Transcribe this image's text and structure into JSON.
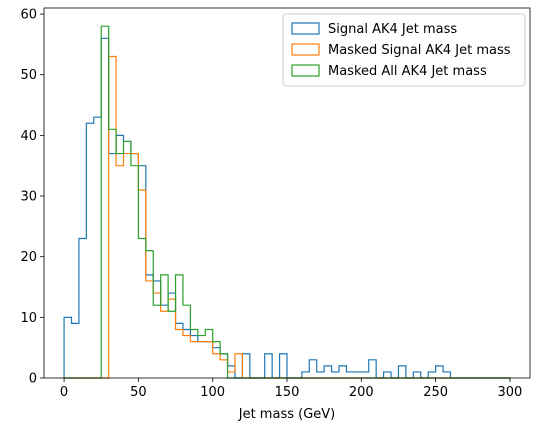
{
  "chart_data": {
    "type": "histogram-step",
    "xlabel": "Jet mass (GeV)",
    "ylabel": "",
    "xlim": [
      -13.5,
      313.5
    ],
    "ylim": [
      0,
      61
    ],
    "xticks": [
      0,
      50,
      100,
      150,
      200,
      250,
      300
    ],
    "yticks": [
      0,
      10,
      20,
      30,
      40,
      50,
      60
    ],
    "bin_edges": [
      0,
      5,
      10,
      15,
      20,
      25,
      30,
      35,
      40,
      45,
      50,
      55,
      60,
      65,
      70,
      75,
      80,
      85,
      90,
      95,
      100,
      105,
      110,
      115,
      120,
      125,
      130,
      135,
      140,
      145,
      150,
      155,
      160,
      165,
      170,
      175,
      180,
      185,
      190,
      195,
      200,
      205,
      210,
      215,
      220,
      225,
      230,
      235,
      240,
      245,
      250,
      255,
      260,
      265,
      270,
      275,
      280,
      285,
      290,
      295,
      300
    ],
    "legend_position": "top-right",
    "grid": false,
    "series": [
      {
        "name": "Signal AK4 Jet mass",
        "color": "#1f77b4",
        "values": [
          10,
          9,
          23,
          42,
          43,
          56,
          37,
          40,
          39,
          37,
          35,
          17,
          16,
          12,
          14,
          9,
          8,
          7,
          6,
          6,
          5,
          4,
          2,
          0,
          4,
          0,
          0,
          4,
          0,
          4,
          0,
          0,
          1,
          3,
          1,
          2,
          1,
          2,
          1,
          1,
          1,
          3,
          0,
          1,
          0,
          2,
          0,
          1,
          0,
          1,
          2,
          1,
          0,
          0,
          0,
          0,
          0,
          0,
          0,
          0
        ]
      },
      {
        "name": "Masked Signal AK4 Jet mass",
        "color": "#ff7f0e",
        "values": [
          0,
          0,
          0,
          0,
          0,
          0,
          53,
          35,
          37,
          37,
          31,
          16,
          14,
          11,
          13,
          8,
          7,
          6,
          6,
          6,
          4,
          3,
          1,
          4,
          0,
          0,
          0,
          0,
          0,
          0,
          0,
          0,
          0,
          0,
          0,
          0,
          0,
          0,
          0,
          0,
          0,
          0,
          0,
          0,
          0,
          0,
          0,
          0,
          0,
          0,
          0,
          0,
          0,
          0,
          0,
          0,
          0,
          0,
          0,
          0
        ]
      },
      {
        "name": "Masked All AK4 Jet mass",
        "color": "#2ca02c",
        "values": [
          0,
          0,
          0,
          0,
          0,
          58,
          41,
          37,
          39,
          35,
          23,
          21,
          12,
          17,
          11,
          17,
          12,
          8,
          7,
          8,
          6,
          4,
          0,
          0,
          0,
          0,
          0,
          0,
          0,
          0,
          0,
          0,
          0,
          0,
          0,
          0,
          0,
          0,
          0,
          0,
          0,
          0,
          0,
          0,
          0,
          0,
          0,
          0,
          0,
          0,
          0,
          0,
          0,
          0,
          0,
          0,
          0,
          0,
          0,
          0
        ]
      }
    ]
  }
}
